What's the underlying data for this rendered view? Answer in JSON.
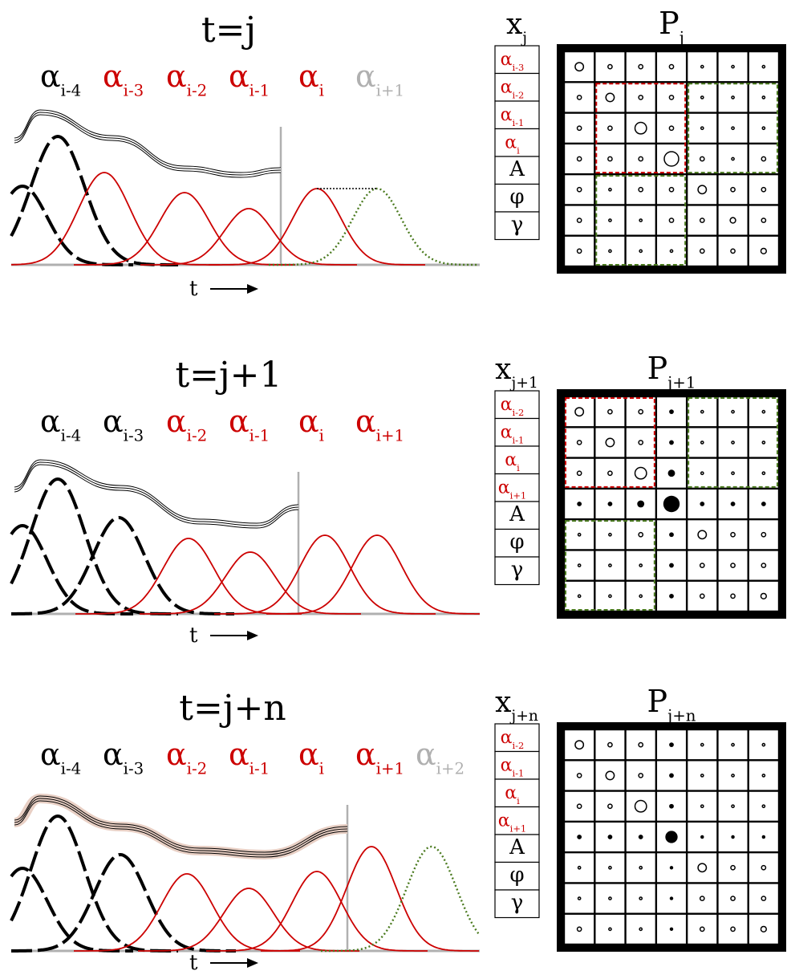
{
  "colors": {
    "black": "#000000",
    "red": "#cc0000",
    "gray": "#b0b0b0",
    "green": "#4a7a1e",
    "band": "#e8cfc4"
  },
  "panels": [
    {
      "title": "t=j",
      "time_axis_label": "t",
      "alpha_labels": [
        {
          "base": "α",
          "sub": "i-4",
          "color": "black"
        },
        {
          "base": "α",
          "sub": "i-3",
          "color": "red"
        },
        {
          "base": "α",
          "sub": "i-2",
          "color": "red"
        },
        {
          "base": "α",
          "sub": "i-1",
          "color": "red"
        },
        {
          "base": "α",
          "sub": "i",
          "color": "red"
        },
        {
          "base": "α",
          "sub": "i+1",
          "color": "gray"
        }
      ],
      "state": {
        "title": "x",
        "sub": "j",
        "entries": [
          {
            "base": "α",
            "sub": "i-3",
            "color": "red"
          },
          {
            "base": "α",
            "sub": "i-2",
            "color": "red"
          },
          {
            "base": "α",
            "sub": "i-1",
            "color": "red"
          },
          {
            "base": "α",
            "sub": "i",
            "color": "red"
          },
          {
            "base": "A",
            "sub": "",
            "color": "black"
          },
          {
            "base": "φ",
            "sub": "",
            "color": "black"
          },
          {
            "base": "γ",
            "sub": "",
            "color": "black"
          }
        ]
      },
      "covariance": {
        "title": "P",
        "sub": "j",
        "cells": [
          [
            "o3",
            "o1",
            "o1",
            "o1",
            "o0",
            "o0",
            "o0"
          ],
          [
            "o1",
            "o3",
            "o1",
            "o1",
            "o0",
            "o0",
            "o0"
          ],
          [
            "o1",
            "o1",
            "o4",
            "o1",
            "o0",
            "o0",
            "o0"
          ],
          [
            "o1",
            "o1",
            "o1",
            "o5",
            "o1",
            "o0",
            "o1"
          ],
          [
            "o1",
            "o0",
            "o1",
            "o1",
            "o3",
            "o1",
            "o1"
          ],
          [
            "o1",
            "o0",
            "o0",
            "o1",
            "o1",
            "o2",
            "o1"
          ],
          [
            "o1",
            "o0",
            "o0",
            "o0",
            "o1",
            "o1",
            "o2"
          ]
        ],
        "red_box": {
          "rows": [
            1,
            3
          ],
          "cols": [
            1,
            3
          ]
        },
        "green_boxes": [
          {
            "rows": [
              1,
              3
            ],
            "cols": [
              4,
              6
            ]
          },
          {
            "rows": [
              4,
              6
            ],
            "cols": [
              1,
              3
            ]
          }
        ]
      }
    },
    {
      "title": "t=j+1",
      "time_axis_label": "t",
      "alpha_labels": [
        {
          "base": "α",
          "sub": "i-4",
          "color": "black"
        },
        {
          "base": "α",
          "sub": "i-3",
          "color": "black"
        },
        {
          "base": "α",
          "sub": "i-2",
          "color": "red"
        },
        {
          "base": "α",
          "sub": "i-1",
          "color": "red"
        },
        {
          "base": "α",
          "sub": "i",
          "color": "red"
        },
        {
          "base": "α",
          "sub": "i+1",
          "color": "red"
        }
      ],
      "state": {
        "title": "x",
        "sub": "j+1",
        "entries": [
          {
            "base": "α",
            "sub": "i-2",
            "color": "red"
          },
          {
            "base": "α",
            "sub": "i-1",
            "color": "red"
          },
          {
            "base": "α",
            "sub": "i",
            "color": "red"
          },
          {
            "base": "α",
            "sub": "i+1",
            "color": "red"
          },
          {
            "base": "A",
            "sub": "",
            "color": "black"
          },
          {
            "base": "φ",
            "sub": "",
            "color": "black"
          },
          {
            "base": "γ",
            "sub": "",
            "color": "black"
          }
        ]
      },
      "covariance": {
        "title": "P",
        "sub": "j+1",
        "cells": [
          [
            "o3",
            "o1",
            "o1",
            "f2",
            "o0",
            "o0",
            "o0"
          ],
          [
            "o1",
            "o3",
            "o1",
            "f2",
            "o0",
            "o0",
            "o0"
          ],
          [
            "o1",
            "o1",
            "o4",
            "f3",
            "o0",
            "o0",
            "o0"
          ],
          [
            "f2",
            "f2",
            "f3",
            "f6",
            "f2",
            "f2",
            "f2"
          ],
          [
            "o0",
            "o0",
            "o1",
            "f2",
            "o3",
            "o1",
            "o1"
          ],
          [
            "o0",
            "o0",
            "o0",
            "f2",
            "o1",
            "o1",
            "o1"
          ],
          [
            "o0",
            "o0",
            "o0",
            "f2",
            "o1",
            "o1",
            "o2"
          ]
        ],
        "red_box": {
          "rows": [
            0,
            2
          ],
          "cols": [
            0,
            2
          ]
        },
        "green_boxes": [
          {
            "rows": [
              0,
              2
            ],
            "cols": [
              4,
              6
            ]
          },
          {
            "rows": [
              4,
              6
            ],
            "cols": [
              0,
              2
            ]
          }
        ]
      }
    },
    {
      "title": "t=j+n",
      "time_axis_label": "t",
      "alpha_labels": [
        {
          "base": "α",
          "sub": "i-4",
          "color": "black"
        },
        {
          "base": "α",
          "sub": "i-3",
          "color": "black"
        },
        {
          "base": "α",
          "sub": "i-2",
          "color": "red"
        },
        {
          "base": "α",
          "sub": "i-1",
          "color": "red"
        },
        {
          "base": "α",
          "sub": "i",
          "color": "red"
        },
        {
          "base": "α",
          "sub": "i+1",
          "color": "red"
        },
        {
          "base": "α",
          "sub": "i+2",
          "color": "gray"
        }
      ],
      "state": {
        "title": "x",
        "sub": "j+n",
        "entries": [
          {
            "base": "α",
            "sub": "i-2",
            "color": "red"
          },
          {
            "base": "α",
            "sub": "i-1",
            "color": "red"
          },
          {
            "base": "α",
            "sub": "i",
            "color": "red"
          },
          {
            "base": "α",
            "sub": "i+1",
            "color": "red"
          },
          {
            "base": "A",
            "sub": "",
            "color": "black"
          },
          {
            "base": "φ",
            "sub": "",
            "color": "black"
          },
          {
            "base": "γ",
            "sub": "",
            "color": "black"
          }
        ]
      },
      "covariance": {
        "title": "P",
        "sub": "j+n",
        "cells": [
          [
            "o3",
            "o1",
            "o1",
            "f2",
            "o0",
            "o0",
            "o0"
          ],
          [
            "o1",
            "o3",
            "o1",
            "f2",
            "o0",
            "o0",
            "o0"
          ],
          [
            "o1",
            "o1",
            "o4",
            "f2",
            "o0",
            "o0",
            "o0"
          ],
          [
            "f2",
            "f2",
            "f2",
            "f5",
            "f1",
            "f1",
            "f1"
          ],
          [
            "o0",
            "o0",
            "o0",
            "f1",
            "o3",
            "o1",
            "o1"
          ],
          [
            "o0",
            "o0",
            "o0",
            "f1",
            "o1",
            "o1",
            "o1"
          ],
          [
            "o1",
            "o0",
            "o0",
            "f1",
            "o1",
            "o1",
            "o2"
          ]
        ],
        "red_box": null,
        "green_boxes": []
      }
    }
  ]
}
